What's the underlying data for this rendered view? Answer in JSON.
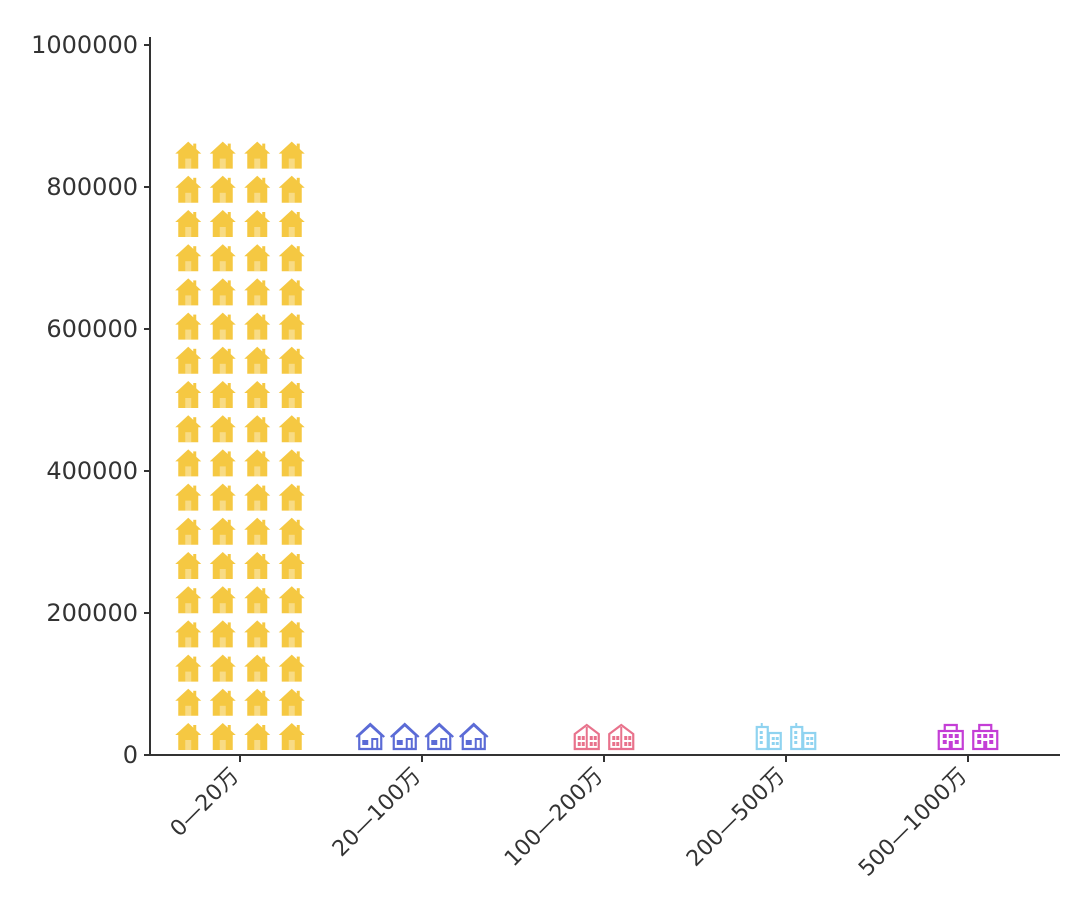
{
  "chart_data": {
    "type": "bar",
    "title": "",
    "xlabel": "",
    "ylabel": "",
    "ylim": [
      0,
      1000000
    ],
    "yticks": [
      0,
      200000,
      400000,
      600000,
      800000,
      1000000
    ],
    "ytick_labels": [
      "0",
      "200000",
      "400000",
      "600000",
      "800000",
      "1000000"
    ],
    "grid": false,
    "categories": [
      "0—20万",
      "20—100万",
      "100—200万",
      "200—500万",
      "500—1000万"
    ],
    "values": [
      900000,
      20000,
      20000,
      20000,
      20000
    ],
    "icons": [
      "house-icon",
      "villa-icon",
      "townhouse-icon",
      "office-building-icon",
      "apartment-building-icon"
    ],
    "colors": [
      "#F5C842",
      "#5B6BD6",
      "#E8728C",
      "#8FD3F0",
      "#C43ED6"
    ],
    "icon_counts": [
      [
        4,
        4,
        4,
        4,
        4,
        4,
        4,
        4,
        4,
        4,
        4,
        4,
        4,
        4,
        4,
        4,
        4,
        4
      ],
      [
        4
      ],
      [
        2
      ],
      [
        2
      ],
      [
        2
      ]
    ]
  }
}
